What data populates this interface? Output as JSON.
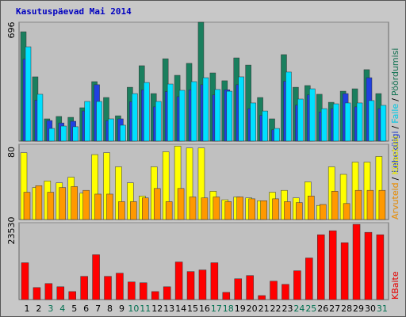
{
  "chart_data": [
    {
      "type": "bar",
      "title": "Kasutuspäevad Mai 2014",
      "categories": [
        "1",
        "2",
        "3",
        "4",
        "5",
        "6",
        "7",
        "8",
        "9",
        "10",
        "11",
        "12",
        "13",
        "14",
        "15",
        "16",
        "17",
        "18",
        "19",
        "20",
        "21",
        "22",
        "23",
        "24",
        "25",
        "26",
        "27",
        "28",
        "29",
        "30",
        "31"
      ],
      "label_colors": [
        "#000000",
        "#000000",
        "#006f4f",
        "#006f4f",
        "#000000",
        "#000000",
        "#000000",
        "#000000",
        "#000000",
        "#006f4f",
        "#006f4f",
        "#000000",
        "#000000",
        "#000000",
        "#000000",
        "#000000",
        "#006f4f",
        "#006f4f",
        "#000000",
        "#000000",
        "#000000",
        "#000000",
        "#000000",
        "#006f4f",
        "#006f4f",
        "#000000",
        "#000000",
        "#000000",
        "#000000",
        "#000000",
        "#006f4f"
      ],
      "separator": "/",
      "ylim": [
        0,
        696
      ],
      "yticks": [
        696
      ],
      "series": [
        {
          "name": "Pöördumisi",
          "color": "#1a7f5e",
          "values": [
            640,
            376,
            130,
            144,
            139,
            195,
            348,
            255,
            148,
            315,
            441,
            278,
            482,
            385,
            455,
            696,
            399,
            353,
            487,
            445,
            255,
            130,
            506,
            315,
            325,
            274,
            227,
            292,
            306,
            418,
            278
          ]
        },
        {
          "name": "Lehekülgi",
          "color": "#2040e0",
          "values": [
            480,
            240,
            120,
            106,
            116,
            176,
            330,
            120,
            130,
            230,
            300,
            200,
            290,
            260,
            300,
            330,
            270,
            300,
            330,
            190,
            150,
            66,
            350,
            210,
            270,
            170,
            190,
            278,
            200,
            371,
            190
          ]
        },
        {
          "name": "Faile",
          "color": "#00e0ff",
          "values": [
            552,
            274,
            74,
            88,
            84,
            232,
            232,
            130,
            93,
            278,
            343,
            232,
            334,
            297,
            348,
            371,
            302,
            292,
            376,
            223,
            176,
            74,
            404,
            246,
            306,
            190,
            218,
            223,
            223,
            237,
            209
          ]
        }
      ]
    },
    {
      "type": "bar",
      "ylim": [
        0,
        80
      ],
      "yticks": [
        80
      ],
      "series": [
        {
          "name": "Külastusi",
          "color": "#ffff00",
          "values": [
            71,
            34,
            41,
            39,
            45,
            28,
            69,
            71,
            56,
            39,
            25,
            56,
            72,
            78,
            76,
            76,
            30,
            21,
            24,
            23,
            20,
            29,
            31,
            23,
            40,
            15,
            56,
            48,
            61,
            61,
            67
          ]
        },
        {
          "name": "Arvuteid",
          "color": "#ff9900",
          "values": [
            29,
            36,
            29,
            34,
            35,
            31,
            27,
            27,
            19,
            19,
            23,
            33,
            19,
            33,
            24,
            23,
            24,
            19,
            24,
            22,
            20,
            22,
            19,
            18,
            25,
            16,
            30,
            17,
            31,
            31,
            31
          ]
        }
      ]
    },
    {
      "type": "bar",
      "ylim": [
        0,
        23530
      ],
      "yticks": [
        23530
      ],
      "series": [
        {
          "name": "KBaite",
          "color": "#ff0000",
          "values": [
            11270,
            3680,
            4900,
            3920,
            2450,
            7110,
            13720,
            7110,
            8085,
            5390,
            5145,
            2450,
            3920,
            11515,
            8575,
            9065,
            11270,
            2205,
            6370,
            7350,
            1225,
            5635,
            4655,
            8820,
            12740,
            19845,
            21070,
            17395,
            23030,
            20580,
            19845
          ]
        }
      ]
    }
  ]
}
